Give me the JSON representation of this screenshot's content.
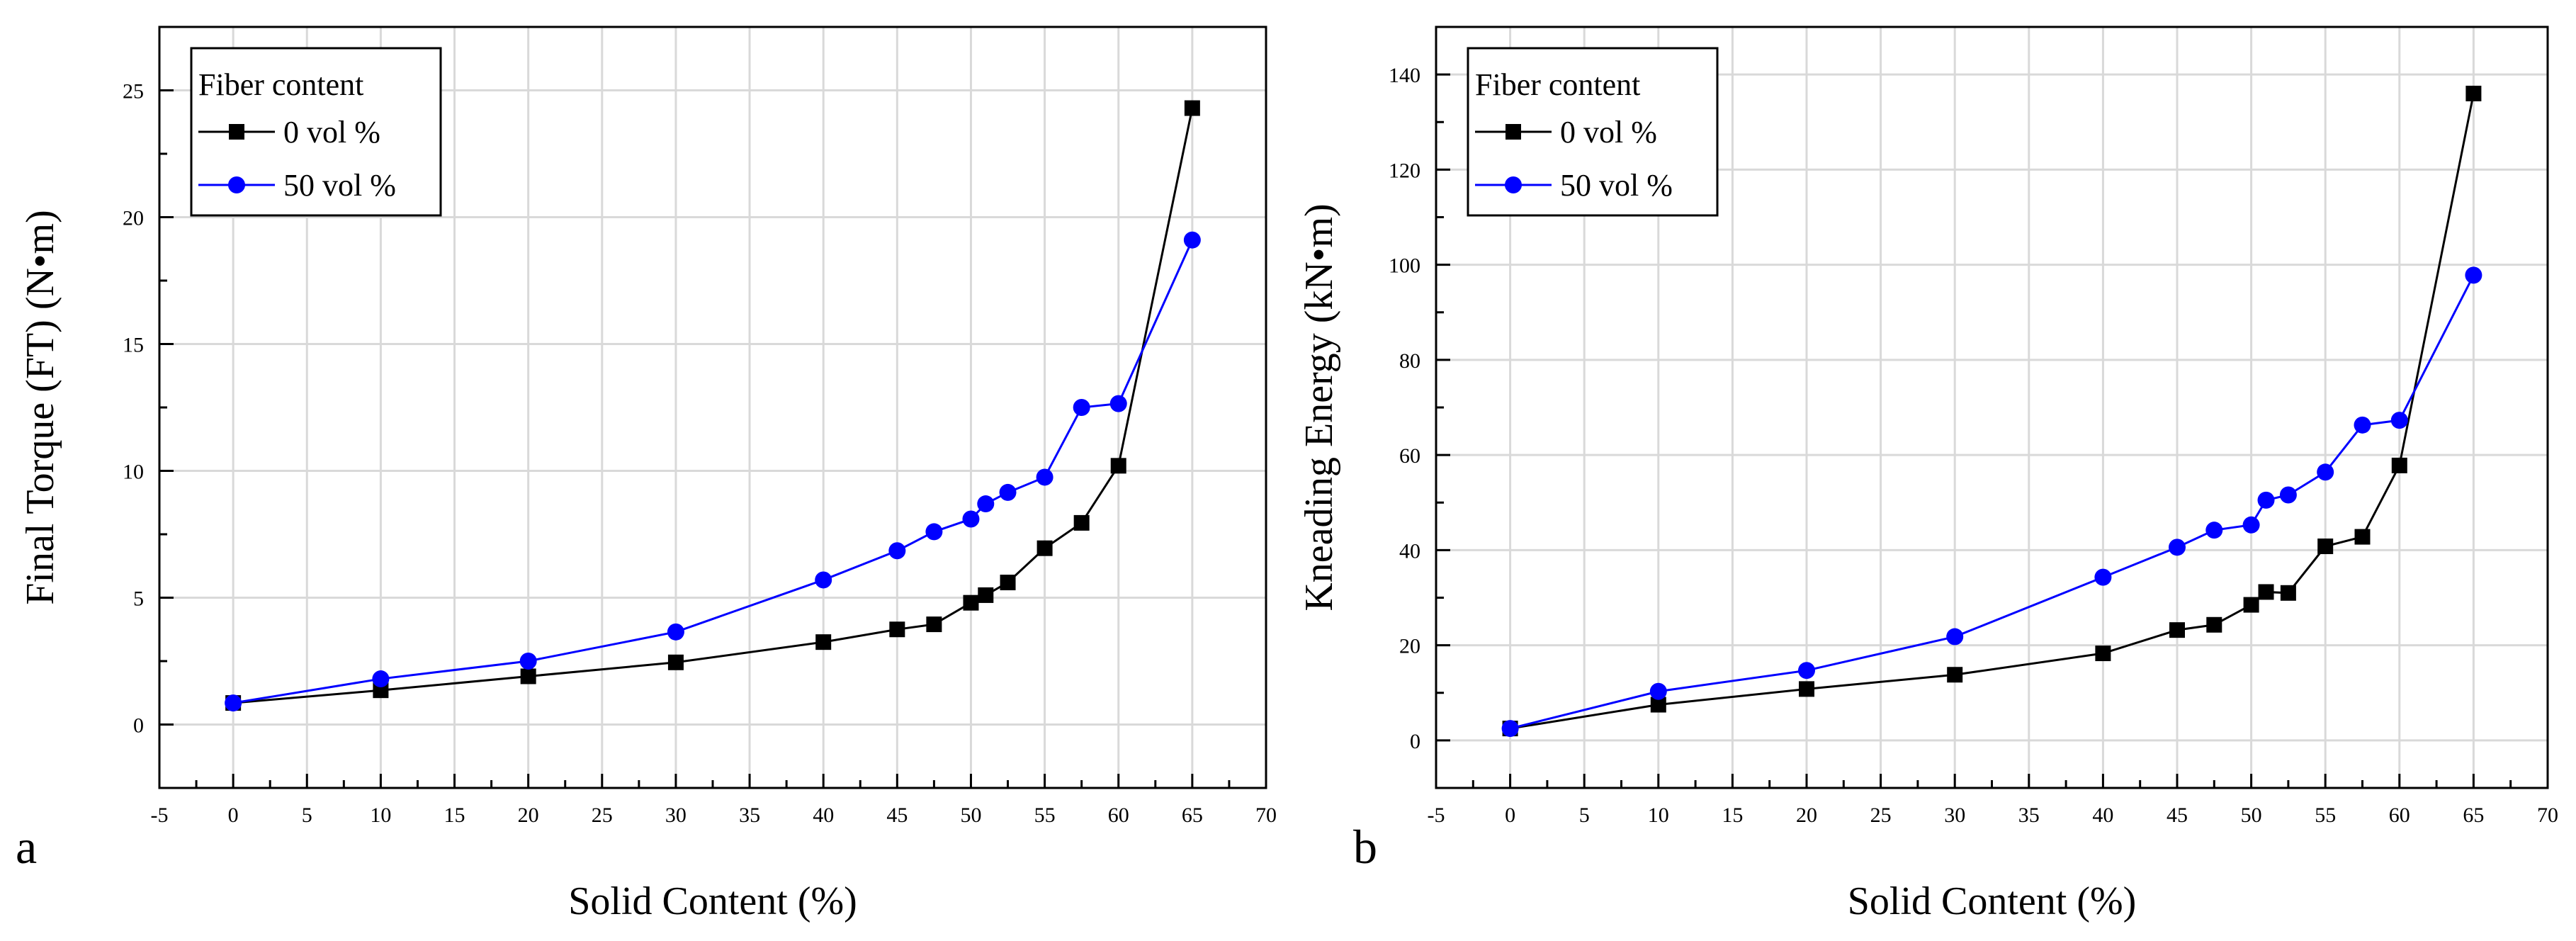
{
  "chart_data": [
    {
      "type": "line",
      "panel_label": "a",
      "xlabel": "Solid Content (%)",
      "ylabel": "Final Torque (FT) (N•m)",
      "xlim": [
        -5,
        70
      ],
      "ylim": [
        -2.5,
        27.5
      ],
      "xticks": [
        -5,
        0,
        5,
        10,
        15,
        20,
        25,
        30,
        35,
        40,
        45,
        50,
        55,
        60,
        65,
        70
      ],
      "yticks": [
        0,
        5,
        10,
        15,
        20,
        25
      ],
      "grid": true,
      "legend": {
        "title": "Fiber content",
        "position": "top-left"
      },
      "series": [
        {
          "name": "0 vol %",
          "color": "#000000",
          "marker": "square",
          "x": [
            0,
            10,
            20,
            30,
            40,
            45,
            47.5,
            50,
            51,
            52.5,
            55,
            57.5,
            60,
            65
          ],
          "y": [
            0.85,
            1.35,
            1.9,
            2.45,
            3.25,
            3.75,
            3.95,
            4.8,
            5.1,
            5.6,
            6.95,
            7.95,
            10.2,
            24.3
          ]
        },
        {
          "name": "50 vol %",
          "color": "#0000ff",
          "marker": "circle",
          "x": [
            0,
            10,
            20,
            30,
            40,
            45,
            47.5,
            50,
            51,
            52.5,
            55,
            57.5,
            60,
            65
          ],
          "y": [
            0.85,
            1.8,
            2.5,
            3.65,
            5.7,
            6.85,
            7.6,
            8.1,
            8.7,
            9.15,
            9.75,
            12.5,
            12.65,
            19.1
          ]
        }
      ]
    },
    {
      "type": "line",
      "panel_label": "b",
      "xlabel": "Solid Content (%)",
      "ylabel": "Kneading Energy (kN•m)",
      "xlim": [
        -5,
        70
      ],
      "ylim": [
        -10,
        150
      ],
      "xticks": [
        -5,
        0,
        5,
        10,
        15,
        20,
        25,
        30,
        35,
        40,
        45,
        50,
        55,
        60,
        65,
        70
      ],
      "yticks": [
        0,
        20,
        40,
        60,
        80,
        100,
        120,
        140
      ],
      "grid": true,
      "legend": {
        "title": "Fiber content",
        "position": "top-left"
      },
      "series": [
        {
          "name": "0 vol %",
          "color": "#000000",
          "marker": "square",
          "x": [
            0,
            10,
            20,
            30,
            40,
            45,
            47.5,
            50,
            51,
            52.5,
            55,
            57.5,
            60,
            65
          ],
          "y": [
            2.5,
            7.5,
            10.8,
            13.8,
            18.3,
            23.2,
            24.3,
            28.5,
            31.2,
            31.0,
            40.8,
            42.8,
            57.8,
            136.0
          ]
        },
        {
          "name": "50 vol %",
          "color": "#0000ff",
          "marker": "circle",
          "x": [
            0,
            10,
            20,
            30,
            40,
            45,
            47.5,
            50,
            51,
            52.5,
            55,
            57.5,
            60,
            65
          ],
          "y": [
            2.5,
            10.3,
            14.7,
            21.8,
            34.3,
            40.6,
            44.2,
            45.3,
            50.5,
            51.6,
            56.4,
            66.3,
            67.3,
            97.8
          ]
        }
      ]
    }
  ]
}
